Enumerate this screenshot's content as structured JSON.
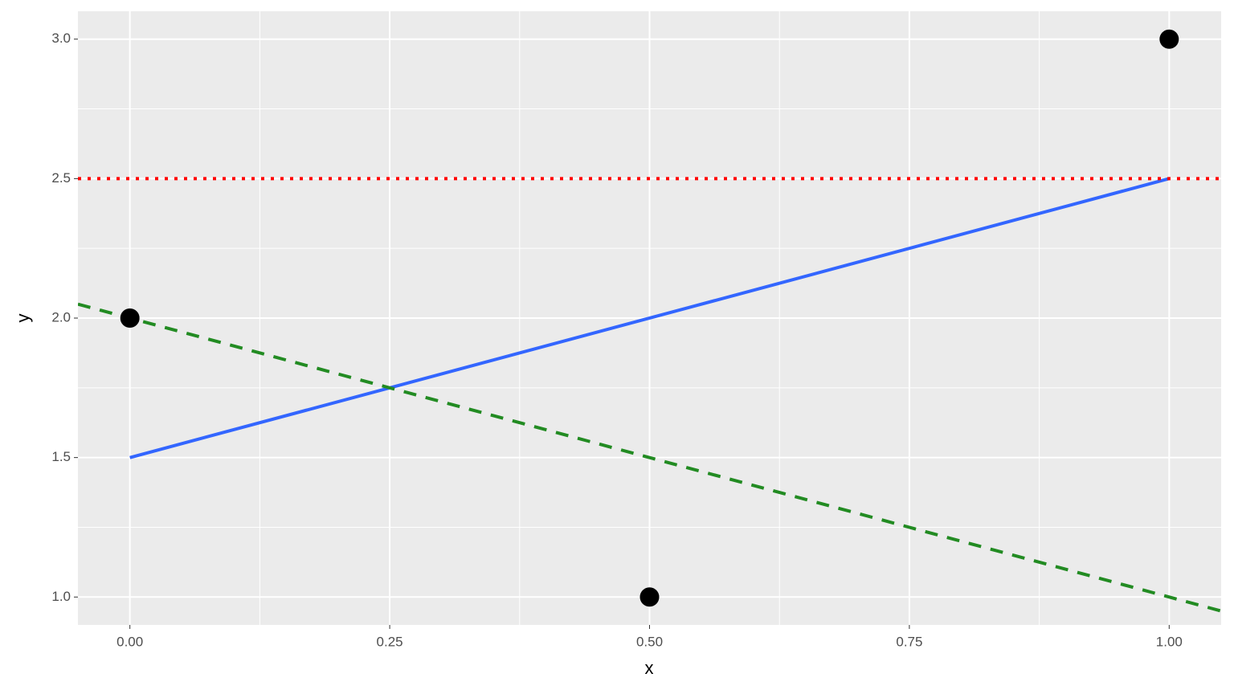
{
  "chart_data": {
    "type": "scatter",
    "x_label": "x",
    "y_label": "y",
    "xlim": [
      -0.05,
      1.05
    ],
    "ylim": [
      0.9,
      3.1
    ],
    "xticks": [
      {
        "value": 0,
        "label": "0.00"
      },
      {
        "value": 0.25,
        "label": "0.25"
      },
      {
        "value": 0.5,
        "label": "0.50"
      },
      {
        "value": 0.75,
        "label": "0.75"
      },
      {
        "value": 1,
        "label": "1.00"
      }
    ],
    "yticks": [
      {
        "value": 1,
        "label": "1.0"
      },
      {
        "value": 1.5,
        "label": "1.5"
      },
      {
        "value": 2,
        "label": "2.0"
      },
      {
        "value": 2.5,
        "label": "2.5"
      },
      {
        "value": 3,
        "label": "3.0"
      }
    ],
    "grid": true,
    "series": [
      {
        "type": "line",
        "color": "#3366ff",
        "x": [
          0,
          1
        ],
        "values": [
          1.5,
          2.5
        ]
      },
      {
        "type": "abline",
        "color": "#228b22",
        "linestyle": "dashed",
        "intercept": 2,
        "slope": -1
      },
      {
        "type": "hline",
        "color": "#ff0000",
        "linestyle": "dotted",
        "yintercept": 2.5
      },
      {
        "type": "scatter",
        "color": "#000000",
        "x": [
          0,
          0.5,
          1
        ],
        "values": [
          2,
          1,
          3
        ]
      }
    ]
  }
}
